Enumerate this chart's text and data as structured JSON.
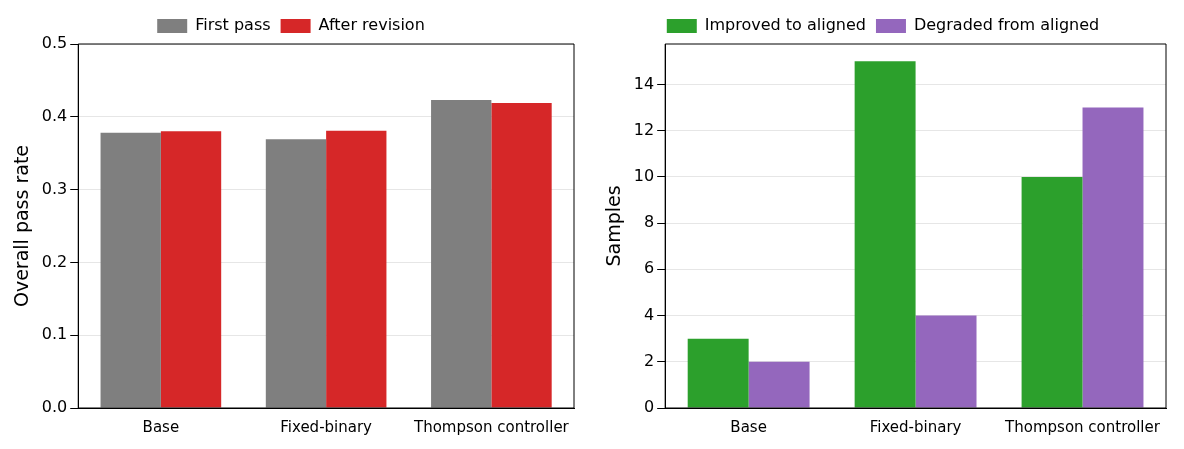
{
  "chart_data": [
    {
      "type": "bar",
      "ylabel": "Overall pass rate",
      "categories": [
        "Base",
        "Fixed-binary",
        "Thompson controller"
      ],
      "series": [
        {
          "name": "First pass",
          "color": "#7f7f7f",
          "values": [
            0.378,
            0.369,
            0.423
          ]
        },
        {
          "name": "After revision",
          "color": "#d62728",
          "values": [
            0.38,
            0.381,
            0.419
          ]
        }
      ],
      "ylim": [
        0,
        0.5
      ],
      "yticks": [
        {
          "value": 0,
          "label": "0.0"
        },
        0.1,
        0.2,
        0.3,
        0.4,
        0.5
      ],
      "grid": "y",
      "legend": "top"
    },
    {
      "type": "bar",
      "ylabel": "Samples",
      "categories": [
        "Base",
        "Fixed-binary",
        "Thompson controller"
      ],
      "series": [
        {
          "name": "Improved to aligned",
          "color": "#2ca02c",
          "values": [
            3,
            15,
            10
          ]
        },
        {
          "name": "Degraded from aligned",
          "color": "#9467bd",
          "values": [
            2,
            4,
            13
          ]
        }
      ],
      "ylim": [
        0,
        15.75
      ],
      "yticks": [
        0,
        2,
        4,
        6,
        8,
        10,
        12,
        14
      ],
      "grid": "y",
      "legend": "top"
    }
  ]
}
